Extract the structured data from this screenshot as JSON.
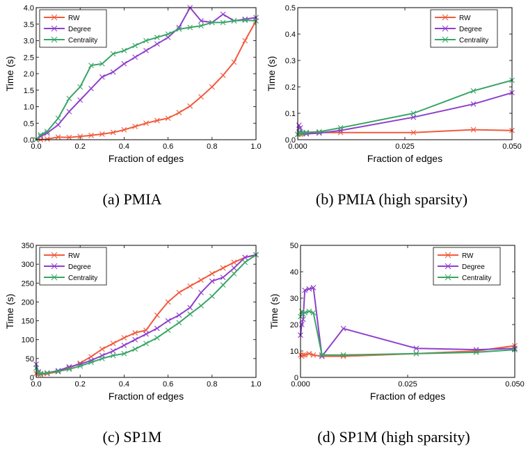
{
  "colors": {
    "RW": "#f05a3c",
    "Degree": "#8e3fcc",
    "Centrality": "#38a565"
  },
  "chart_data": [
    {
      "type": "line",
      "caption": "(a) PMIA",
      "xlabel": "Fraction of edges",
      "ylabel": "Time (s)",
      "xlim": [
        0,
        1.0
      ],
      "ylim": [
        0,
        4.0
      ],
      "xticks": [
        0,
        0.2,
        0.4,
        0.6,
        0.8,
        1.0
      ],
      "xtick_labels": [
        "0.0",
        "0.2",
        "0.4",
        "0.6",
        "0.8",
        "1.0"
      ],
      "yticks": [
        0,
        0.5,
        1.0,
        1.5,
        2.0,
        2.5,
        3.0,
        3.5,
        4.0
      ],
      "ytick_labels": [
        "0.0",
        "0.5",
        "1.0",
        "1.5",
        "2.0",
        "2.5",
        "3.0",
        "3.5",
        "4.0"
      ],
      "legend": {
        "position": "top-left",
        "entries": [
          "RW",
          "Degree",
          "Centrality"
        ]
      },
      "series": [
        {
          "name": "RW",
          "x": [
            0,
            0.02,
            0.05,
            0.1,
            0.15,
            0.2,
            0.25,
            0.3,
            0.35,
            0.4,
            0.45,
            0.5,
            0.55,
            0.6,
            0.65,
            0.7,
            0.75,
            0.8,
            0.85,
            0.9,
            0.95,
            1.0
          ],
          "y": [
            0.0,
            0.0,
            0.02,
            0.08,
            0.07,
            0.1,
            0.13,
            0.17,
            0.22,
            0.3,
            0.4,
            0.5,
            0.58,
            0.65,
            0.82,
            1.02,
            1.3,
            1.6,
            1.95,
            2.35,
            3.0,
            3.6
          ]
        },
        {
          "name": "Degree",
          "x": [
            0,
            0.02,
            0.05,
            0.1,
            0.15,
            0.2,
            0.25,
            0.3,
            0.35,
            0.4,
            0.45,
            0.5,
            0.55,
            0.6,
            0.65,
            0.7,
            0.75,
            0.8,
            0.85,
            0.9,
            0.95,
            1.0
          ],
          "y": [
            0.0,
            0.1,
            0.2,
            0.45,
            0.85,
            1.2,
            1.55,
            1.9,
            2.05,
            2.3,
            2.5,
            2.7,
            2.9,
            3.1,
            3.4,
            4.0,
            3.6,
            3.55,
            3.8,
            3.6,
            3.65,
            3.7
          ]
        },
        {
          "name": "Centrality",
          "x": [
            0,
            0.02,
            0.05,
            0.1,
            0.15,
            0.2,
            0.25,
            0.3,
            0.35,
            0.4,
            0.45,
            0.5,
            0.55,
            0.6,
            0.65,
            0.7,
            0.75,
            0.8,
            0.85,
            0.9,
            0.95,
            1.0
          ],
          "y": [
            0.0,
            0.15,
            0.25,
            0.65,
            1.25,
            1.6,
            2.25,
            2.3,
            2.6,
            2.7,
            2.85,
            3.0,
            3.1,
            3.2,
            3.35,
            3.4,
            3.45,
            3.55,
            3.55,
            3.6,
            3.62,
            3.6
          ]
        }
      ]
    },
    {
      "type": "line",
      "caption": "(b) PMIA (high sparsity)",
      "xlabel": "Fraction of edges",
      "ylabel": "Time (s)",
      "xlim": [
        0,
        0.05
      ],
      "ylim": [
        0,
        0.5
      ],
      "xticks": [
        0,
        0.025,
        0.05
      ],
      "xtick_labels": [
        "0.000",
        "0.025",
        "0.050"
      ],
      "yticks": [
        0,
        0.1,
        0.2,
        0.3,
        0.4,
        0.5
      ],
      "ytick_labels": [
        "0.0",
        "0.1",
        "0.2",
        "0.3",
        "0.4",
        "0.5"
      ],
      "legend": {
        "position": "top-right",
        "entries": [
          "RW",
          "Degree",
          "Centrality"
        ]
      },
      "series": [
        {
          "name": "RW",
          "x": [
            0.0,
            0.0003,
            0.0006,
            0.001,
            0.002,
            0.005,
            0.01,
            0.027,
            0.041,
            0.05
          ],
          "y": [
            0.02,
            0.025,
            0.02,
            0.022,
            0.025,
            0.027,
            0.027,
            0.027,
            0.038,
            0.035
          ]
        },
        {
          "name": "Degree",
          "x": [
            0.0,
            0.0003,
            0.0006,
            0.001,
            0.002,
            0.005,
            0.01,
            0.027,
            0.041,
            0.05
          ],
          "y": [
            0.02,
            0.055,
            0.045,
            0.025,
            0.022,
            0.025,
            0.035,
            0.085,
            0.135,
            0.178
          ]
        },
        {
          "name": "Centrality",
          "x": [
            0.0,
            0.0003,
            0.0006,
            0.001,
            0.002,
            0.005,
            0.01,
            0.027,
            0.041,
            0.05
          ],
          "y": [
            0.02,
            0.03,
            0.025,
            0.025,
            0.028,
            0.03,
            0.045,
            0.1,
            0.185,
            0.225
          ]
        }
      ]
    },
    {
      "type": "line",
      "caption": "(c) SP1M",
      "xlabel": "Fraction of edges",
      "ylabel": "Time (s)",
      "xlim": [
        0,
        1.0
      ],
      "ylim": [
        0,
        350
      ],
      "xticks": [
        0,
        0.2,
        0.4,
        0.6,
        0.8,
        1.0
      ],
      "xtick_labels": [
        "0.0",
        "0.2",
        "0.4",
        "0.6",
        "0.8",
        "1.0"
      ],
      "yticks": [
        0,
        50,
        100,
        150,
        200,
        250,
        300,
        350
      ],
      "ytick_labels": [
        "0",
        "50",
        "100",
        "150",
        "200",
        "250",
        "300",
        "350"
      ],
      "legend": {
        "position": "top-left",
        "entries": [
          "RW",
          "Degree",
          "Centrality"
        ]
      },
      "series": [
        {
          "name": "RW",
          "x": [
            0,
            0.01,
            0.02,
            0.05,
            0.1,
            0.15,
            0.2,
            0.25,
            0.3,
            0.35,
            0.4,
            0.45,
            0.5,
            0.55,
            0.6,
            0.65,
            0.7,
            0.75,
            0.8,
            0.85,
            0.9,
            0.95,
            1.0
          ],
          "y": [
            10,
            8,
            8,
            10,
            15,
            25,
            38,
            55,
            75,
            90,
            105,
            118,
            125,
            165,
            200,
            225,
            242,
            258,
            275,
            290,
            305,
            318,
            325
          ]
        },
        {
          "name": "Degree",
          "x": [
            0,
            0.01,
            0.02,
            0.05,
            0.1,
            0.15,
            0.2,
            0.25,
            0.3,
            0.35,
            0.4,
            0.45,
            0.5,
            0.55,
            0.6,
            0.65,
            0.7,
            0.75,
            0.8,
            0.85,
            0.9,
            0.95,
            1.0
          ],
          "y": [
            35,
            15,
            10,
            12,
            18,
            28,
            35,
            45,
            58,
            70,
            85,
            100,
            115,
            130,
            150,
            165,
            185,
            225,
            255,
            265,
            290,
            318,
            325
          ]
        },
        {
          "name": "Centrality",
          "x": [
            0,
            0.01,
            0.02,
            0.05,
            0.1,
            0.15,
            0.2,
            0.25,
            0.3,
            0.35,
            0.4,
            0.45,
            0.5,
            0.55,
            0.6,
            0.65,
            0.7,
            0.75,
            0.8,
            0.85,
            0.9,
            0.95,
            1.0
          ],
          "y": [
            25,
            12,
            10,
            12,
            16,
            22,
            30,
            40,
            50,
            58,
            63,
            75,
            90,
            105,
            125,
            145,
            168,
            190,
            215,
            245,
            275,
            305,
            325
          ]
        }
      ]
    },
    {
      "type": "line",
      "caption": "(d) SP1M (high sparsity)",
      "xlabel": "Fraction of edges",
      "ylabel": "Time (s)",
      "xlim": [
        0,
        0.05
      ],
      "ylim": [
        0,
        50
      ],
      "xticks": [
        0,
        0.025,
        0.05
      ],
      "xtick_labels": [
        "0.000",
        "0.025",
        "0.050"
      ],
      "yticks": [
        0,
        10,
        20,
        30,
        40,
        50
      ],
      "ytick_labels": [
        "0",
        "10",
        "20",
        "30",
        "40",
        "50"
      ],
      "legend": {
        "position": "top-right",
        "entries": [
          "RW",
          "Degree",
          "Centrality"
        ]
      },
      "series": [
        {
          "name": "RW",
          "x": [
            0.0,
            0.0003,
            0.0006,
            0.001,
            0.002,
            0.003,
            0.005,
            0.01,
            0.027,
            0.041,
            0.05
          ],
          "y": [
            8.5,
            8,
            8.5,
            8.5,
            9,
            8.5,
            8,
            8,
            9,
            10,
            12
          ]
        },
        {
          "name": "Degree",
          "x": [
            0.0,
            0.0003,
            0.0006,
            0.001,
            0.002,
            0.003,
            0.005,
            0.01,
            0.027,
            0.041,
            0.05
          ],
          "y": [
            16,
            20,
            22,
            33,
            33.5,
            34,
            8,
            18.5,
            11,
            10.5,
            11
          ]
        },
        {
          "name": "Centrality",
          "x": [
            0.0,
            0.0003,
            0.0006,
            0.001,
            0.002,
            0.003,
            0.005,
            0.01,
            0.027,
            0.041,
            0.05
          ],
          "y": [
            23,
            25,
            24,
            24.5,
            25,
            24.5,
            8.5,
            8.5,
            9,
            9.5,
            10.5
          ]
        }
      ]
    }
  ]
}
